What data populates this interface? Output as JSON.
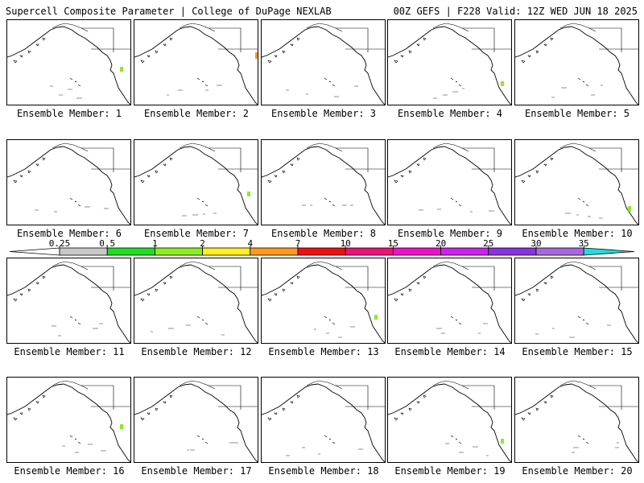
{
  "header": {
    "left_title": "Supercell Composite Parameter | College of DuPage NEXLAB",
    "right_title": "00Z GEFS | F228 Valid: 12Z WED JUN 18 2025"
  },
  "colorbar": {
    "ticks": [
      "0.25",
      "0.5",
      "1",
      "2",
      "4",
      "7",
      "10",
      "15",
      "20",
      "25",
      "30",
      "35"
    ],
    "colors": [
      "#ffffff",
      "#c8c8c8",
      "#22dd22",
      "#88ee22",
      "#ffee22",
      "#ff9922",
      "#ee1111",
      "#ee1177",
      "#ee11cc",
      "#cc22ee",
      "#8833dd",
      "#aa66dd",
      "#22dddd"
    ]
  },
  "panels": [
    {
      "label": "Ensemble Member: 1"
    },
    {
      "label": "Ensemble Member: 2"
    },
    {
      "label": "Ensemble Member: 3"
    },
    {
      "label": "Ensemble Member: 4"
    },
    {
      "label": "Ensemble Member: 5"
    },
    {
      "label": "Ensemble Member: 6"
    },
    {
      "label": "Ensemble Member: 7"
    },
    {
      "label": "Ensemble Member: 8"
    },
    {
      "label": "Ensemble Member: 9"
    },
    {
      "label": "Ensemble Member: 10"
    },
    {
      "label": "Ensemble Member: 11"
    },
    {
      "label": "Ensemble Member: 12"
    },
    {
      "label": "Ensemble Member: 13"
    },
    {
      "label": "Ensemble Member: 14"
    },
    {
      "label": "Ensemble Member: 15"
    },
    {
      "label": "Ensemble Member: 16"
    },
    {
      "label": "Ensemble Member: 17"
    },
    {
      "label": "Ensemble Member: 18"
    },
    {
      "label": "Ensemble Member: 19"
    },
    {
      "label": "Ensemble Member: 20"
    }
  ]
}
